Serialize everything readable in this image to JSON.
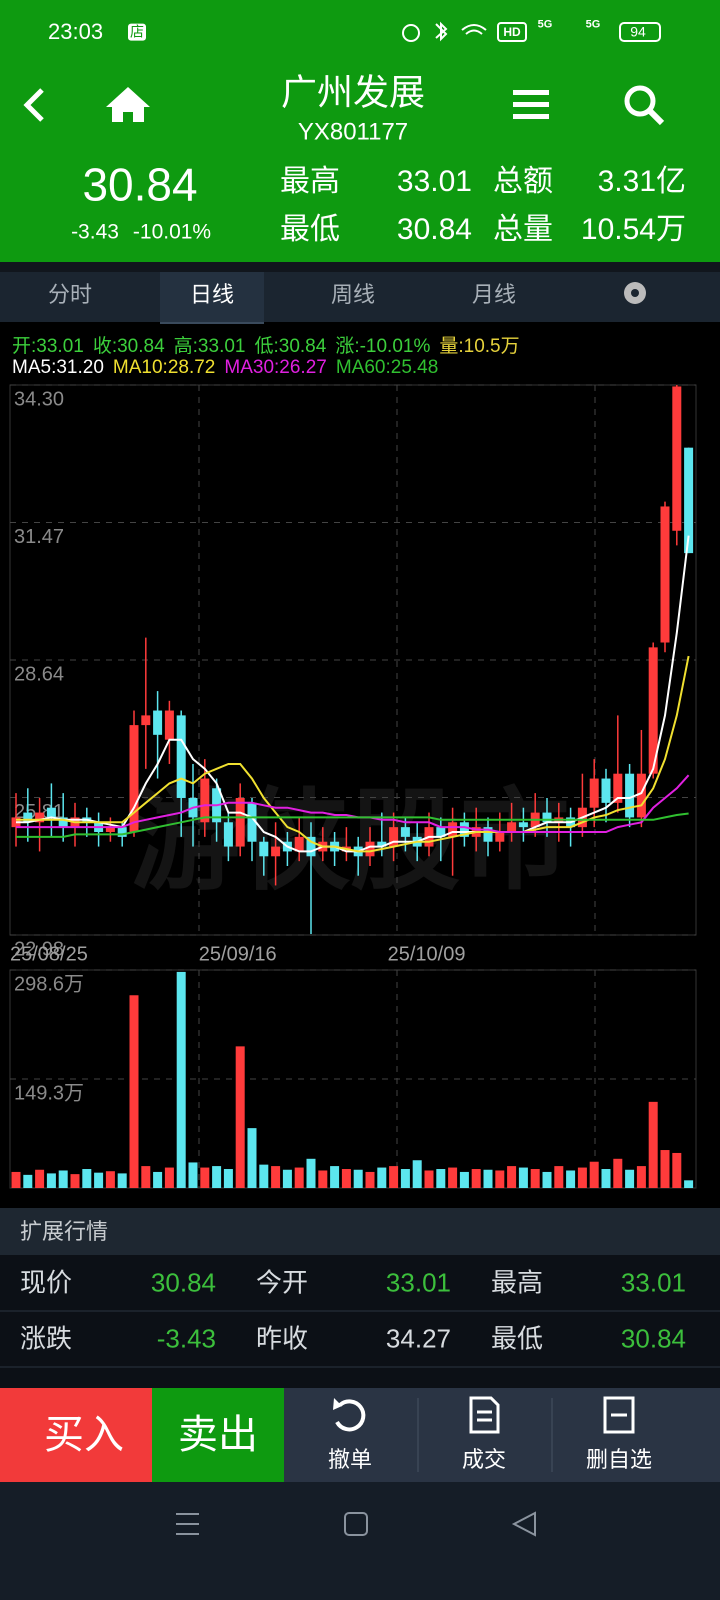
{
  "status_bar": {
    "time": "23:03",
    "badge": "店",
    "hd": "HD",
    "network": [
      "5G",
      "5G"
    ],
    "battery": "94"
  },
  "header": {
    "title": "广州发展",
    "code": "YX801177",
    "price": "30.84",
    "change": "-3.43",
    "change_pct": "-10.01%",
    "stats": [
      [
        "最高",
        "33.01",
        "总额",
        "3.31亿"
      ],
      [
        "最低",
        "30.84",
        "总量",
        "10.54万"
      ]
    ]
  },
  "tabs": [
    "分时",
    "日线",
    "周线",
    "月线"
  ],
  "active_tab": 1,
  "quote_line": [
    {
      "text": "开:33.01",
      "color": "#3ccf3c"
    },
    {
      "text": "收:30.84",
      "color": "#3ccf3c"
    },
    {
      "text": "高:33.01",
      "color": "#3ccf3c"
    },
    {
      "text": "低:30.84",
      "color": "#3ccf3c"
    },
    {
      "text": "涨:-10.01%",
      "color": "#3ccf3c"
    },
    {
      "text": "量:10.5万",
      "color": "#e6d23c"
    }
  ],
  "watermark": "游侠股市",
  "chart_data": [
    {
      "type": "candlestick",
      "categories": [
        "25/08/25",
        null,
        null,
        null,
        null,
        null,
        null,
        null,
        null,
        null,
        null,
        null,
        null,
        null,
        null,
        null,
        "25/09/16",
        null,
        null,
        null,
        null,
        null,
        null,
        null,
        null,
        null,
        null,
        null,
        null,
        null,
        null,
        null,
        "25/10/09",
        null,
        null,
        null,
        null,
        null,
        null,
        null,
        null,
        null,
        null,
        null,
        null,
        null,
        null,
        null,
        null,
        null,
        null,
        null,
        null,
        null,
        null,
        null,
        null,
        null
      ],
      "open": [
        25.2,
        25.5,
        25.3,
        25.6,
        25.4,
        25.2,
        25.4,
        25.3,
        25.1,
        25.2,
        25.1,
        27.3,
        27.6,
        27.0,
        27.5,
        25.8,
        25.3,
        26.0,
        25.3,
        24.8,
        25.7,
        24.9,
        24.6,
        24.9,
        24.7,
        25.0,
        24.7,
        24.9,
        24.7,
        24.8,
        24.6,
        24.9,
        24.8,
        25.2,
        25.0,
        24.8,
        25.2,
        25.0,
        25.3,
        25.0,
        25.2,
        24.9,
        25.1,
        25.3,
        25.2,
        25.5,
        25.3,
        25.4,
        25.2,
        25.6,
        26.2,
        25.7,
        26.3,
        25.4,
        26.3,
        29.0,
        31.3,
        33.01
      ],
      "high": [
        25.9,
        26.0,
        25.8,
        26.1,
        25.9,
        25.7,
        25.6,
        25.5,
        25.4,
        25.3,
        27.6,
        29.1,
        28.0,
        27.8,
        27.6,
        26.5,
        26.6,
        26.2,
        25.5,
        26.1,
        25.8,
        25.0,
        25.3,
        25.1,
        25.4,
        25.3,
        25.2,
        25.1,
        25.2,
        25.0,
        25.2,
        25.5,
        25.5,
        25.4,
        25.3,
        25.5,
        25.4,
        25.6,
        25.5,
        25.6,
        25.4,
        25.5,
        25.7,
        25.6,
        25.9,
        25.8,
        25.7,
        25.6,
        26.3,
        26.6,
        26.4,
        27.5,
        26.5,
        27.2,
        29.0,
        31.9,
        34.3,
        33.01
      ],
      "low": [
        24.8,
        24.9,
        24.7,
        25.0,
        24.9,
        24.8,
        25.0,
        24.8,
        24.9,
        24.8,
        25.0,
        26.4,
        26.2,
        26.5,
        25.0,
        24.8,
        25.0,
        24.9,
        24.5,
        24.6,
        24.5,
        24.2,
        24.0,
        24.4,
        24.5,
        23.0,
        24.5,
        24.4,
        24.5,
        24.2,
        24.4,
        24.6,
        24.5,
        24.7,
        24.5,
        24.6,
        24.5,
        24.2,
        24.8,
        24.7,
        24.6,
        24.7,
        24.9,
        24.9,
        25.0,
        25.0,
        24.9,
        24.8,
        25.0,
        25.2,
        25.3,
        25.5,
        25.2,
        25.2,
        26.2,
        28.8,
        31.0,
        30.84
      ],
      "close": [
        25.4,
        25.3,
        25.5,
        25.4,
        25.2,
        25.4,
        25.3,
        25.1,
        25.2,
        25.0,
        27.3,
        27.5,
        27.1,
        27.6,
        25.8,
        25.4,
        26.2,
        25.3,
        24.8,
        25.8,
        24.9,
        24.6,
        24.8,
        24.7,
        25.0,
        24.6,
        24.9,
        24.7,
        24.8,
        24.6,
        24.9,
        24.8,
        25.2,
        25.0,
        24.8,
        25.2,
        25.0,
        25.3,
        25.0,
        25.2,
        24.9,
        25.1,
        25.3,
        25.2,
        25.5,
        25.3,
        25.4,
        25.2,
        25.6,
        26.2,
        25.7,
        26.3,
        25.4,
        26.3,
        28.9,
        31.8,
        34.27,
        30.84
      ],
      "up_color": "#ff3b3b",
      "down_color": "#5ce6ef",
      "series": [
        {
          "name": "MA5:31.20",
          "color": "#ffffff",
          "values": [
            25.3,
            25.3,
            25.35,
            25.4,
            25.35,
            25.35,
            25.35,
            25.3,
            25.25,
            25.2,
            25.6,
            26.1,
            26.5,
            27.0,
            27.0,
            26.6,
            26.4,
            26.1,
            25.5,
            25.5,
            25.4,
            25.1,
            25.0,
            24.8,
            24.7,
            24.7,
            24.8,
            24.8,
            24.7,
            24.7,
            24.8,
            24.8,
            24.9,
            24.9,
            24.9,
            25.0,
            25.0,
            25.1,
            25.1,
            25.1,
            25.1,
            25.1,
            25.1,
            25.1,
            25.2,
            25.3,
            25.3,
            25.3,
            25.4,
            25.5,
            25.6,
            25.8,
            25.8,
            25.9,
            26.4,
            27.5,
            29.2,
            31.2
          ]
        },
        {
          "name": "MA10:28.72",
          "color": "#f0e030",
          "values": [
            25.35,
            25.35,
            25.35,
            25.35,
            25.35,
            25.3,
            25.3,
            25.3,
            25.3,
            25.3,
            25.5,
            25.7,
            25.9,
            26.1,
            26.2,
            26.1,
            26.3,
            26.4,
            26.5,
            26.5,
            26.2,
            25.8,
            25.5,
            25.2,
            25.1,
            24.9,
            24.8,
            24.8,
            24.75,
            24.7,
            24.7,
            24.75,
            24.8,
            24.85,
            24.9,
            24.9,
            24.95,
            25.0,
            25.05,
            25.1,
            25.1,
            25.1,
            25.1,
            25.1,
            25.15,
            25.2,
            25.2,
            25.2,
            25.3,
            25.4,
            25.45,
            25.55,
            25.6,
            25.65,
            26.0,
            26.6,
            27.5,
            28.72
          ]
        },
        {
          "name": "MA30:26.27",
          "color": "#e020e0",
          "values": [
            25.2,
            25.2,
            25.2,
            25.2,
            25.2,
            25.2,
            25.2,
            25.2,
            25.2,
            25.2,
            25.3,
            25.35,
            25.4,
            25.45,
            25.5,
            25.6,
            25.65,
            25.65,
            25.7,
            25.7,
            25.7,
            25.65,
            25.6,
            25.6,
            25.55,
            25.5,
            25.5,
            25.45,
            25.45,
            25.4,
            25.4,
            25.35,
            25.35,
            25.3,
            25.3,
            25.3,
            25.2,
            25.2,
            25.2,
            25.15,
            25.15,
            25.1,
            25.1,
            25.1,
            25.1,
            25.1,
            25.1,
            25.1,
            25.1,
            25.1,
            25.1,
            25.2,
            25.25,
            25.3,
            25.6,
            25.8,
            26.0,
            26.27
          ]
        },
        {
          "name": "MA60:25.48",
          "color": "#30c030",
          "values": [
            25.0,
            25.0,
            25.0,
            25.0,
            25.0,
            25.05,
            25.05,
            25.05,
            25.05,
            25.05,
            25.1,
            25.15,
            25.2,
            25.25,
            25.3,
            25.35,
            25.4,
            25.4,
            25.4,
            25.4,
            25.4,
            25.4,
            25.4,
            25.4,
            25.4,
            25.4,
            25.4,
            25.4,
            25.4,
            25.4,
            25.4,
            25.4,
            25.4,
            25.4,
            25.4,
            25.4,
            25.35,
            25.35,
            25.35,
            25.35,
            25.35,
            25.35,
            25.35,
            25.35,
            25.35,
            25.35,
            25.35,
            25.35,
            25.35,
            25.35,
            25.35,
            25.35,
            25.35,
            25.35,
            25.35,
            25.4,
            25.45,
            25.48
          ]
        }
      ],
      "ylim": [
        22.98,
        34.3
      ],
      "yticks": [
        {
          "value": 34.3,
          "label": "34.30"
        },
        31.47,
        28.64,
        25.81,
        22.98
      ],
      "grid": true
    },
    {
      "type": "bar",
      "values": [
        22,
        18,
        25,
        20,
        24,
        19,
        26,
        21,
        23,
        20,
        264,
        30,
        22,
        28,
        296,
        35,
        28,
        30,
        26,
        194,
        82,
        32,
        30,
        25,
        28,
        40,
        24,
        30,
        26,
        25,
        22,
        28,
        30,
        26,
        38,
        24,
        26,
        28,
        22,
        26,
        25,
        24,
        30,
        28,
        26,
        22,
        30,
        24,
        28,
        36,
        26,
        40,
        25,
        30,
        118,
        52,
        48,
        10.5
      ],
      "ylim": [
        0,
        298.6
      ],
      "yticks": [
        {
          "value": 298.6,
          "label": "298.6万"
        },
        {
          "value": 149.3,
          "label": "149.3万"
        }
      ],
      "grid": true
    }
  ],
  "extended": {
    "title": "扩展行情",
    "rows": [
      [
        {
          "text": "现价"
        },
        {
          "text": "30.84",
          "color": "#3cbf3c"
        },
        {
          "text": "今开"
        },
        {
          "text": "33.01",
          "color": "#3cbf3c"
        },
        {
          "text": "最高"
        },
        {
          "text": "33.01",
          "color": "#3cbf3c"
        }
      ],
      [
        {
          "text": "涨跌"
        },
        {
          "text": "-3.43",
          "color": "#3cbf3c"
        },
        {
          "text": "昨收"
        },
        {
          "text": "34.27"
        },
        {
          "text": "最低"
        },
        {
          "text": "30.84",
          "color": "#3cbf3c"
        }
      ]
    ]
  },
  "actions": [
    "买入",
    "卖出",
    "撤单",
    "成交",
    "删自选"
  ]
}
